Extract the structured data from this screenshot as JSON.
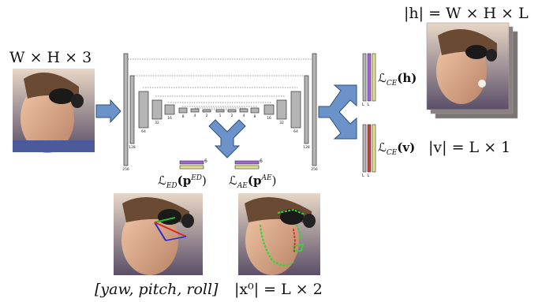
{
  "labels": {
    "input_dims": "W × H × 3",
    "heatmap_dims": "|h| = W × H × L",
    "visibility_dims": "|v| = L × 1",
    "pose": "[yaw, pitch, roll]",
    "landmarks_dims": "|x⁰| = L × 2"
  },
  "losses": {
    "ce_h": "ℒ",
    "ce_h_sub": "CE",
    "ce_h_arg": "(h)",
    "ce_v": "ℒ",
    "ce_v_sub": "CE",
    "ce_v_arg": "(v)",
    "ed": "ℒ",
    "ed_sub": "ED",
    "ed_arg": "(p",
    "ed_sup": "ED",
    "ed_close": ")",
    "ae": "ℒ",
    "ae_sub": "AE",
    "ae_arg": "(p",
    "ae_sup": "AE",
    "ae_close": ")"
  },
  "network": {
    "block_labels": [
      "256",
      "128",
      "64",
      "32",
      "16",
      "8",
      "4",
      "2",
      "1",
      "2",
      "4",
      "8",
      "16",
      "32",
      "64",
      "128",
      "256"
    ],
    "bottleneck_label_ed": "6",
    "bottleneck_label_ae": "6",
    "output_label_h": "L L",
    "output_label_v": "L L"
  },
  "colors": {
    "arrow_fill": "#6b93c9",
    "arrow_stroke": "#2f4f7a",
    "block_fill": "#b5b5b5",
    "purple": "#a066d8",
    "yellow": "#e6e08a",
    "red": "#c74040",
    "landmark_green": "#3ad23a",
    "pose_blue": "#2a2ad0",
    "pose_green": "#2ab82a",
    "pose_red": "#d02a2a"
  }
}
